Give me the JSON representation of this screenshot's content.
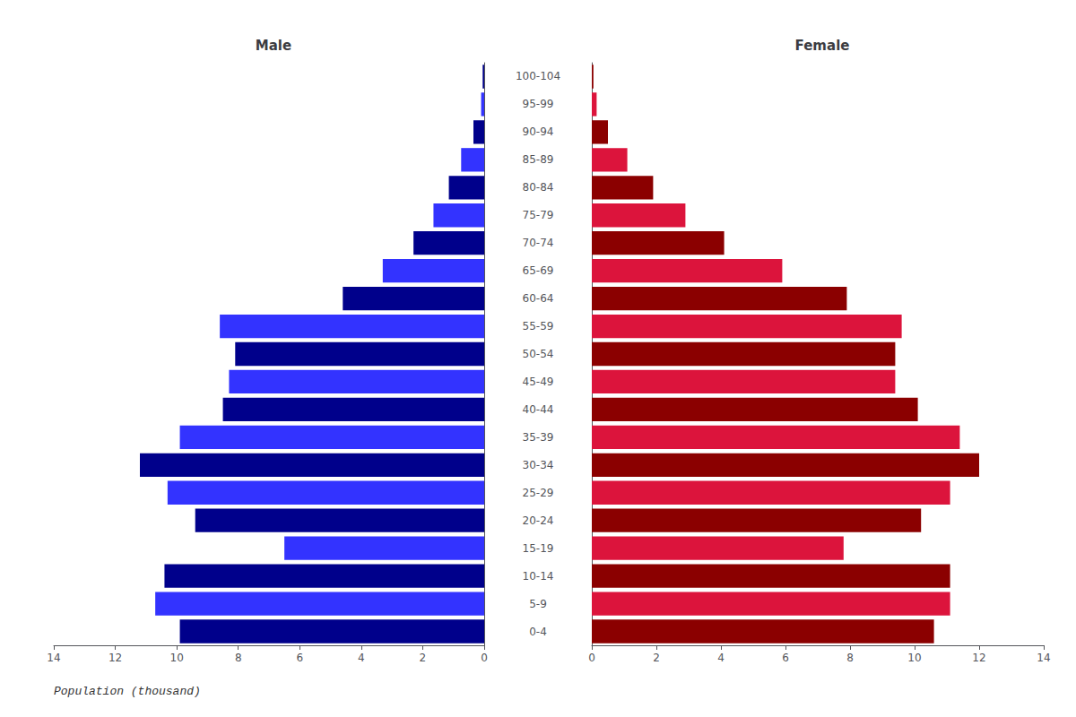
{
  "chart_data": {
    "type": "bar",
    "orientation": "horizontal",
    "xlabel": "Population (thousand)",
    "categories": [
      "0-4",
      "5-9",
      "10-14",
      "15-19",
      "20-24",
      "25-29",
      "30-34",
      "35-39",
      "40-44",
      "45-49",
      "50-54",
      "55-59",
      "60-64",
      "65-69",
      "70-74",
      "75-79",
      "80-84",
      "85-89",
      "90-94",
      "95-99",
      "100-104"
    ],
    "xlim": [
      0,
      14
    ],
    "xticks": [
      0,
      2,
      4,
      6,
      8,
      10,
      12,
      14
    ],
    "grid": false,
    "series": [
      {
        "name": "Male",
        "colors": [
          "#00008b",
          "#3333ff",
          "#00008b",
          "#3333ff",
          "#00008b",
          "#3333ff",
          "#00008b",
          "#3333ff",
          "#00008b",
          "#3333ff",
          "#00008b",
          "#3333ff",
          "#00008b",
          "#3333ff",
          "#00008b",
          "#3333ff",
          "#00008b",
          "#3333ff",
          "#00008b",
          "#3333ff",
          "#00008b"
        ],
        "values": [
          9.9,
          10.7,
          10.4,
          6.5,
          9.4,
          10.3,
          11.2,
          9.9,
          8.5,
          8.3,
          8.1,
          8.6,
          4.6,
          3.3,
          2.3,
          1.65,
          1.15,
          0.75,
          0.35,
          0.1,
          0.05
        ]
      },
      {
        "name": "Female",
        "colors": [
          "#8b0000",
          "#dc143c",
          "#8b0000",
          "#dc143c",
          "#8b0000",
          "#dc143c",
          "#8b0000",
          "#dc143c",
          "#8b0000",
          "#dc143c",
          "#8b0000",
          "#dc143c",
          "#8b0000",
          "#dc143c",
          "#8b0000",
          "#dc143c",
          "#8b0000",
          "#dc143c",
          "#8b0000",
          "#dc143c",
          "#8b0000"
        ],
        "values": [
          10.6,
          11.1,
          11.1,
          7.8,
          10.2,
          11.1,
          12.0,
          11.4,
          10.1,
          9.4,
          9.4,
          9.6,
          7.9,
          5.9,
          4.1,
          2.9,
          1.9,
          1.1,
          0.5,
          0.15,
          0.05
        ]
      }
    ]
  }
}
